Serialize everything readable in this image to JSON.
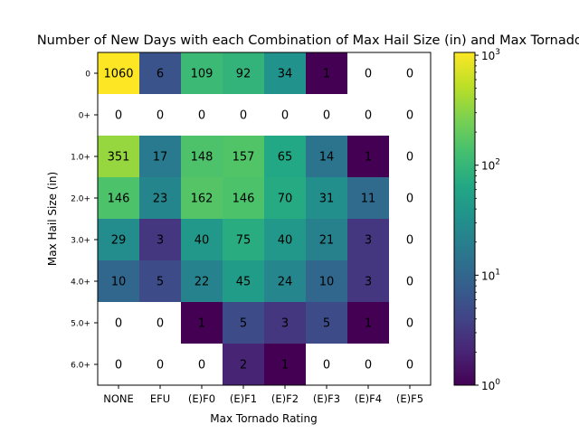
{
  "chart_data": {
    "type": "heatmap",
    "title": "Number of New Days with each Combination of Max Hail Size (in) and Max Tornado Rating",
    "xlabel": "Max Tornado Rating",
    "ylabel": "Max Hail Size (in)",
    "x_categories": [
      "NONE",
      "EFU",
      "(E)F0",
      "(E)F1",
      "(E)F2",
      "(E)F3",
      "(E)F4",
      "(E)F5"
    ],
    "y_categories": [
      "0",
      "0+",
      "1.0+",
      "2.0+",
      "3.0+",
      "4.0+",
      "5.0+",
      "6.0+"
    ],
    "values": [
      [
        1060,
        6,
        109,
        92,
        34,
        1,
        0,
        0
      ],
      [
        0,
        0,
        0,
        0,
        0,
        0,
        0,
        0
      ],
      [
        351,
        17,
        148,
        157,
        65,
        14,
        1,
        0
      ],
      [
        146,
        23,
        162,
        146,
        70,
        31,
        11,
        0
      ],
      [
        29,
        3,
        40,
        75,
        40,
        21,
        3,
        0
      ],
      [
        10,
        5,
        22,
        45,
        24,
        10,
        3,
        0
      ],
      [
        0,
        0,
        1,
        5,
        3,
        5,
        1,
        0
      ],
      [
        0,
        0,
        0,
        2,
        1,
        0,
        0,
        0
      ]
    ],
    "labels_shown": [
      [
        "1060",
        "6",
        "109",
        "92",
        "34",
        "1",
        "0",
        "0"
      ],
      [
        "0",
        "0",
        "0",
        "0",
        "0",
        "0",
        "0",
        "0"
      ],
      [
        "351",
        "17",
        "148",
        "157",
        "65",
        "14",
        "1",
        "0"
      ],
      [
        "146",
        "23",
        "162",
        "146",
        "70",
        "31",
        "11",
        "0"
      ],
      [
        "29",
        "3",
        "40",
        "75",
        "40",
        "21",
        "3",
        "0"
      ],
      [
        "10",
        "5",
        "22",
        "45",
        "24",
        "10",
        "3",
        "0"
      ],
      [
        "0",
        "0",
        "1",
        "5",
        "3",
        "5",
        "1",
        "0"
      ],
      [
        "0",
        "0",
        "0",
        "2",
        "1",
        "0",
        "0",
        "0"
      ]
    ],
    "color_scale": {
      "type": "log",
      "colormap": "viridis",
      "min": 1,
      "max": 1060,
      "zero_color": "#ffffff",
      "ticks": [
        {
          "value": 1,
          "base": "10",
          "exp": "0"
        },
        {
          "value": 10,
          "base": "10",
          "exp": "1"
        },
        {
          "value": 100,
          "base": "10",
          "exp": "2"
        },
        {
          "value": 1000,
          "base": "10",
          "exp": "3"
        }
      ]
    },
    "legend": "colorbar-right",
    "grid": false
  }
}
